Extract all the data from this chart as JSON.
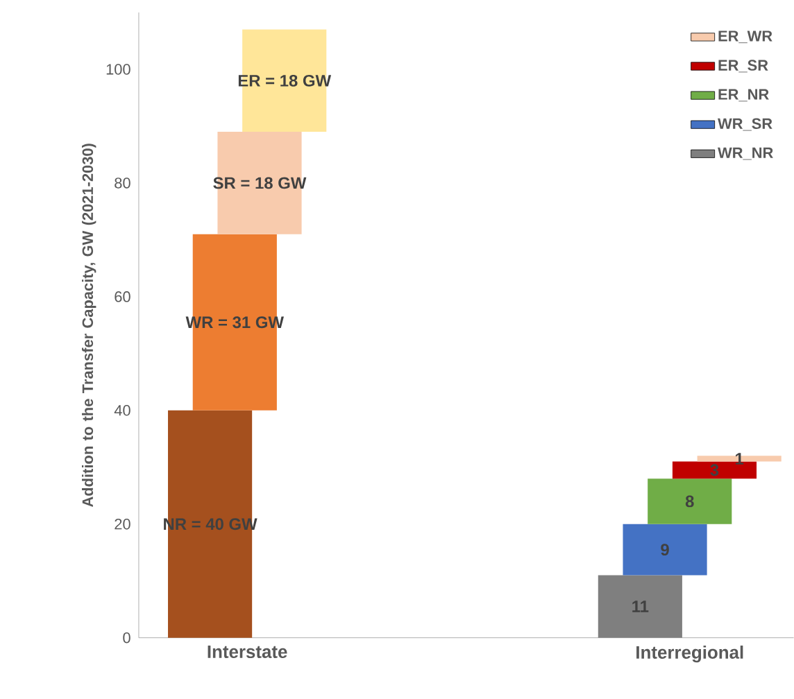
{
  "chart_data": {
    "type": "bar",
    "ylabel": "Addition to the Transfer Capacity, GW (2021-2030)",
    "categories": [
      "Interstate",
      "Interregional"
    ],
    "ylim": [
      0,
      110
    ],
    "yticks": [
      0,
      20,
      40,
      60,
      80,
      100
    ],
    "legend": "top right",
    "series": [
      {
        "color": "#a5501e",
        "values": [
          40,
          null
        ],
        "base": [
          0,
          null
        ],
        "value_labels": [
          "NR = 40 GW",
          null
        ]
      },
      {
        "color": "#ed7d31",
        "values": [
          31,
          null
        ],
        "base": [
          40,
          null
        ],
        "value_labels": [
          "WR = 31 GW",
          null
        ]
      },
      {
        "color": "#f8cbad",
        "values": [
          18,
          null
        ],
        "base": [
          71,
          null
        ],
        "value_labels": [
          "SR = 18 GW",
          null
        ]
      },
      {
        "color": "#ffe699",
        "values": [
          18,
          null
        ],
        "base": [
          89,
          null
        ],
        "value_labels": [
          "ER = 18 GW",
          null
        ]
      },
      {
        "name": "WR_NR",
        "color": "#7f7f7f",
        "values": [
          null,
          11
        ],
        "base": [
          null,
          0
        ],
        "value_labels": [
          null,
          "11"
        ]
      },
      {
        "name": "WR_SR",
        "color": "#4472c4",
        "values": [
          null,
          9
        ],
        "base": [
          null,
          11
        ],
        "value_labels": [
          null,
          "9"
        ]
      },
      {
        "name": "ER_NR",
        "color": "#70ad47",
        "values": [
          null,
          8
        ],
        "base": [
          null,
          20
        ],
        "value_labels": [
          null,
          "8"
        ]
      },
      {
        "name": "ER_SR",
        "color": "#c00000",
        "values": [
          null,
          3
        ],
        "base": [
          null,
          28
        ],
        "value_labels": [
          null,
          "3"
        ]
      },
      {
        "name": "ER_WR",
        "color": "#f8cbad",
        "values": [
          null,
          1
        ],
        "base": [
          null,
          31
        ],
        "value_labels": [
          null,
          "1"
        ]
      }
    ]
  }
}
